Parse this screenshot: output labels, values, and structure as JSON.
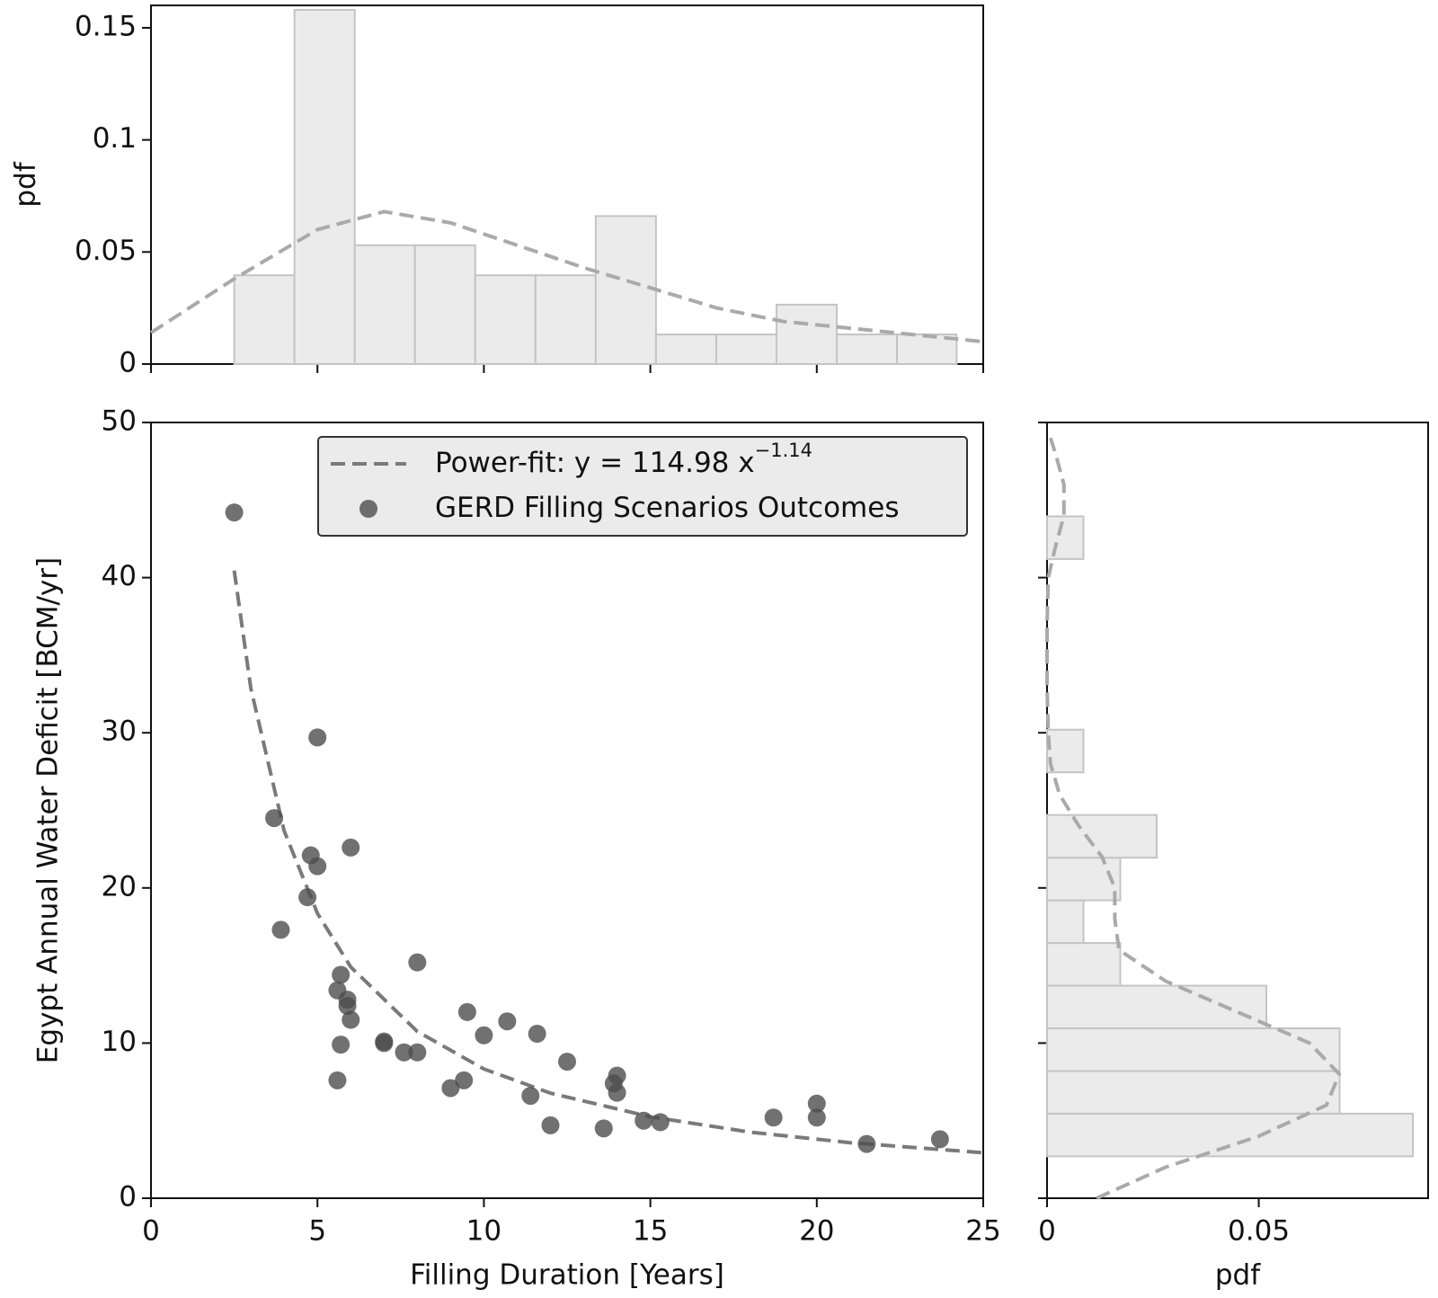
{
  "chart_data": [
    {
      "type": "histogram",
      "orientation": "vertical",
      "ylabel": "pdf",
      "bins": [
        2.5,
        4.31,
        6.12,
        7.93,
        9.74,
        11.55,
        13.36,
        15.17,
        16.98,
        18.79,
        20.6,
        22.41,
        24.2
      ],
      "values": [
        0.0396,
        0.158,
        0.053,
        0.053,
        0.0396,
        0.0396,
        0.066,
        0.0132,
        0.0132,
        0.0265,
        0.0132,
        0.0132
      ],
      "color": "#ebebeb",
      "edgecolor": "#c4c4c4",
      "kde": {
        "color": "#aaaaaa",
        "x": [
          0,
          2.5,
          5,
          7,
          9,
          11,
          13,
          15,
          17,
          19,
          21,
          23,
          25
        ],
        "values": [
          0.014,
          0.038,
          0.06,
          0.068,
          0.063,
          0.053,
          0.043,
          0.034,
          0.025,
          0.019,
          0.016,
          0.013,
          0.01
        ]
      },
      "ylim": [
        0,
        0.16
      ],
      "yticks": [
        0,
        0.05,
        0.1,
        0.15
      ]
    },
    {
      "type": "scatter",
      "xlabel": "Filling Duration [Years]",
      "ylabel": "Egypt Annual Water Deficit [BCM/yr]",
      "xlim": [
        0,
        25
      ],
      "ylim": [
        0,
        50
      ],
      "xticks": [
        0,
        5,
        10,
        15,
        20,
        25
      ],
      "yticks": [
        0,
        10,
        20,
        30,
        40,
        50
      ],
      "legend": "upper right",
      "series": [
        {
          "name": "Power-fit: y = 114.98 x",
          "name_superscript": "−1.14",
          "kind": "line",
          "color": "#7a7a7a",
          "x": [
            2.5,
            3,
            4,
            5,
            6,
            8,
            10,
            12,
            15,
            18,
            21,
            25
          ],
          "values": [
            40.46,
            32.86,
            23.67,
            18.36,
            14.91,
            10.75,
            8.33,
            6.77,
            5.25,
            4.26,
            3.58,
            2.93
          ]
        },
        {
          "name": "GERD Filling Scenarios Outcomes",
          "kind": "points",
          "color": "#4d4d4d",
          "x": [
            2.5,
            3.7,
            3.9,
            4.7,
            4.8,
            5.0,
            5.0,
            5.6,
            5.6,
            5.7,
            5.7,
            5.9,
            5.9,
            6.0,
            6.0,
            7.0,
            7.0,
            7.6,
            8.0,
            8.0,
            9.0,
            9.4,
            9.5,
            10.0,
            10.7,
            11.4,
            11.6,
            12.0,
            12.5,
            13.6,
            13.9,
            14.0,
            14.0,
            14.8,
            15.3,
            18.7,
            20.0,
            20.0,
            21.5,
            23.7
          ],
          "values": [
            44.2,
            24.5,
            17.3,
            19.4,
            22.1,
            21.4,
            29.7,
            13.4,
            7.6,
            9.9,
            14.4,
            12.4,
            12.8,
            11.5,
            22.6,
            10.1,
            10.0,
            9.4,
            9.4,
            15.2,
            7.1,
            7.6,
            12.0,
            10.5,
            11.4,
            6.6,
            10.6,
            4.7,
            8.8,
            4.5,
            7.4,
            7.9,
            6.8,
            5.0,
            4.9,
            5.2,
            6.1,
            5.2,
            3.5,
            3.8
          ]
        }
      ]
    },
    {
      "type": "histogram",
      "orientation": "horizontal",
      "xlabel": "pdf",
      "bins": [
        2.7,
        5.45,
        8.2,
        10.95,
        13.7,
        16.45,
        19.2,
        21.95,
        24.7,
        27.45,
        30.2,
        32.95,
        35.7,
        38.45,
        41.2,
        43.95
      ],
      "values": [
        0.0864,
        0.0691,
        0.0691,
        0.0518,
        0.0173,
        0.0086,
        0.0173,
        0.0259,
        0,
        0.0086,
        0,
        0,
        0,
        0,
        0.0086
      ],
      "color": "#ebebeb",
      "edgecolor": "#c4c4c4",
      "kde": {
        "color": "#aaaaaa",
        "y": [
          0,
          2,
          4,
          6,
          8,
          10,
          12,
          14,
          16,
          18,
          20,
          22,
          24,
          26,
          28,
          30,
          33,
          37,
          40,
          42,
          44,
          46,
          48,
          49
        ],
        "values": [
          0.0117,
          0.028,
          0.05,
          0.066,
          0.069,
          0.062,
          0.045,
          0.028,
          0.017,
          0.016,
          0.016,
          0.013,
          0.0075,
          0.003,
          0.0008,
          0.0003,
          0,
          0,
          0.0003,
          0.002,
          0.004,
          0.004,
          0.002,
          0.0008
        ]
      },
      "xlim": [
        0,
        0.09
      ],
      "xticks": [
        0,
        0.05
      ]
    }
  ]
}
